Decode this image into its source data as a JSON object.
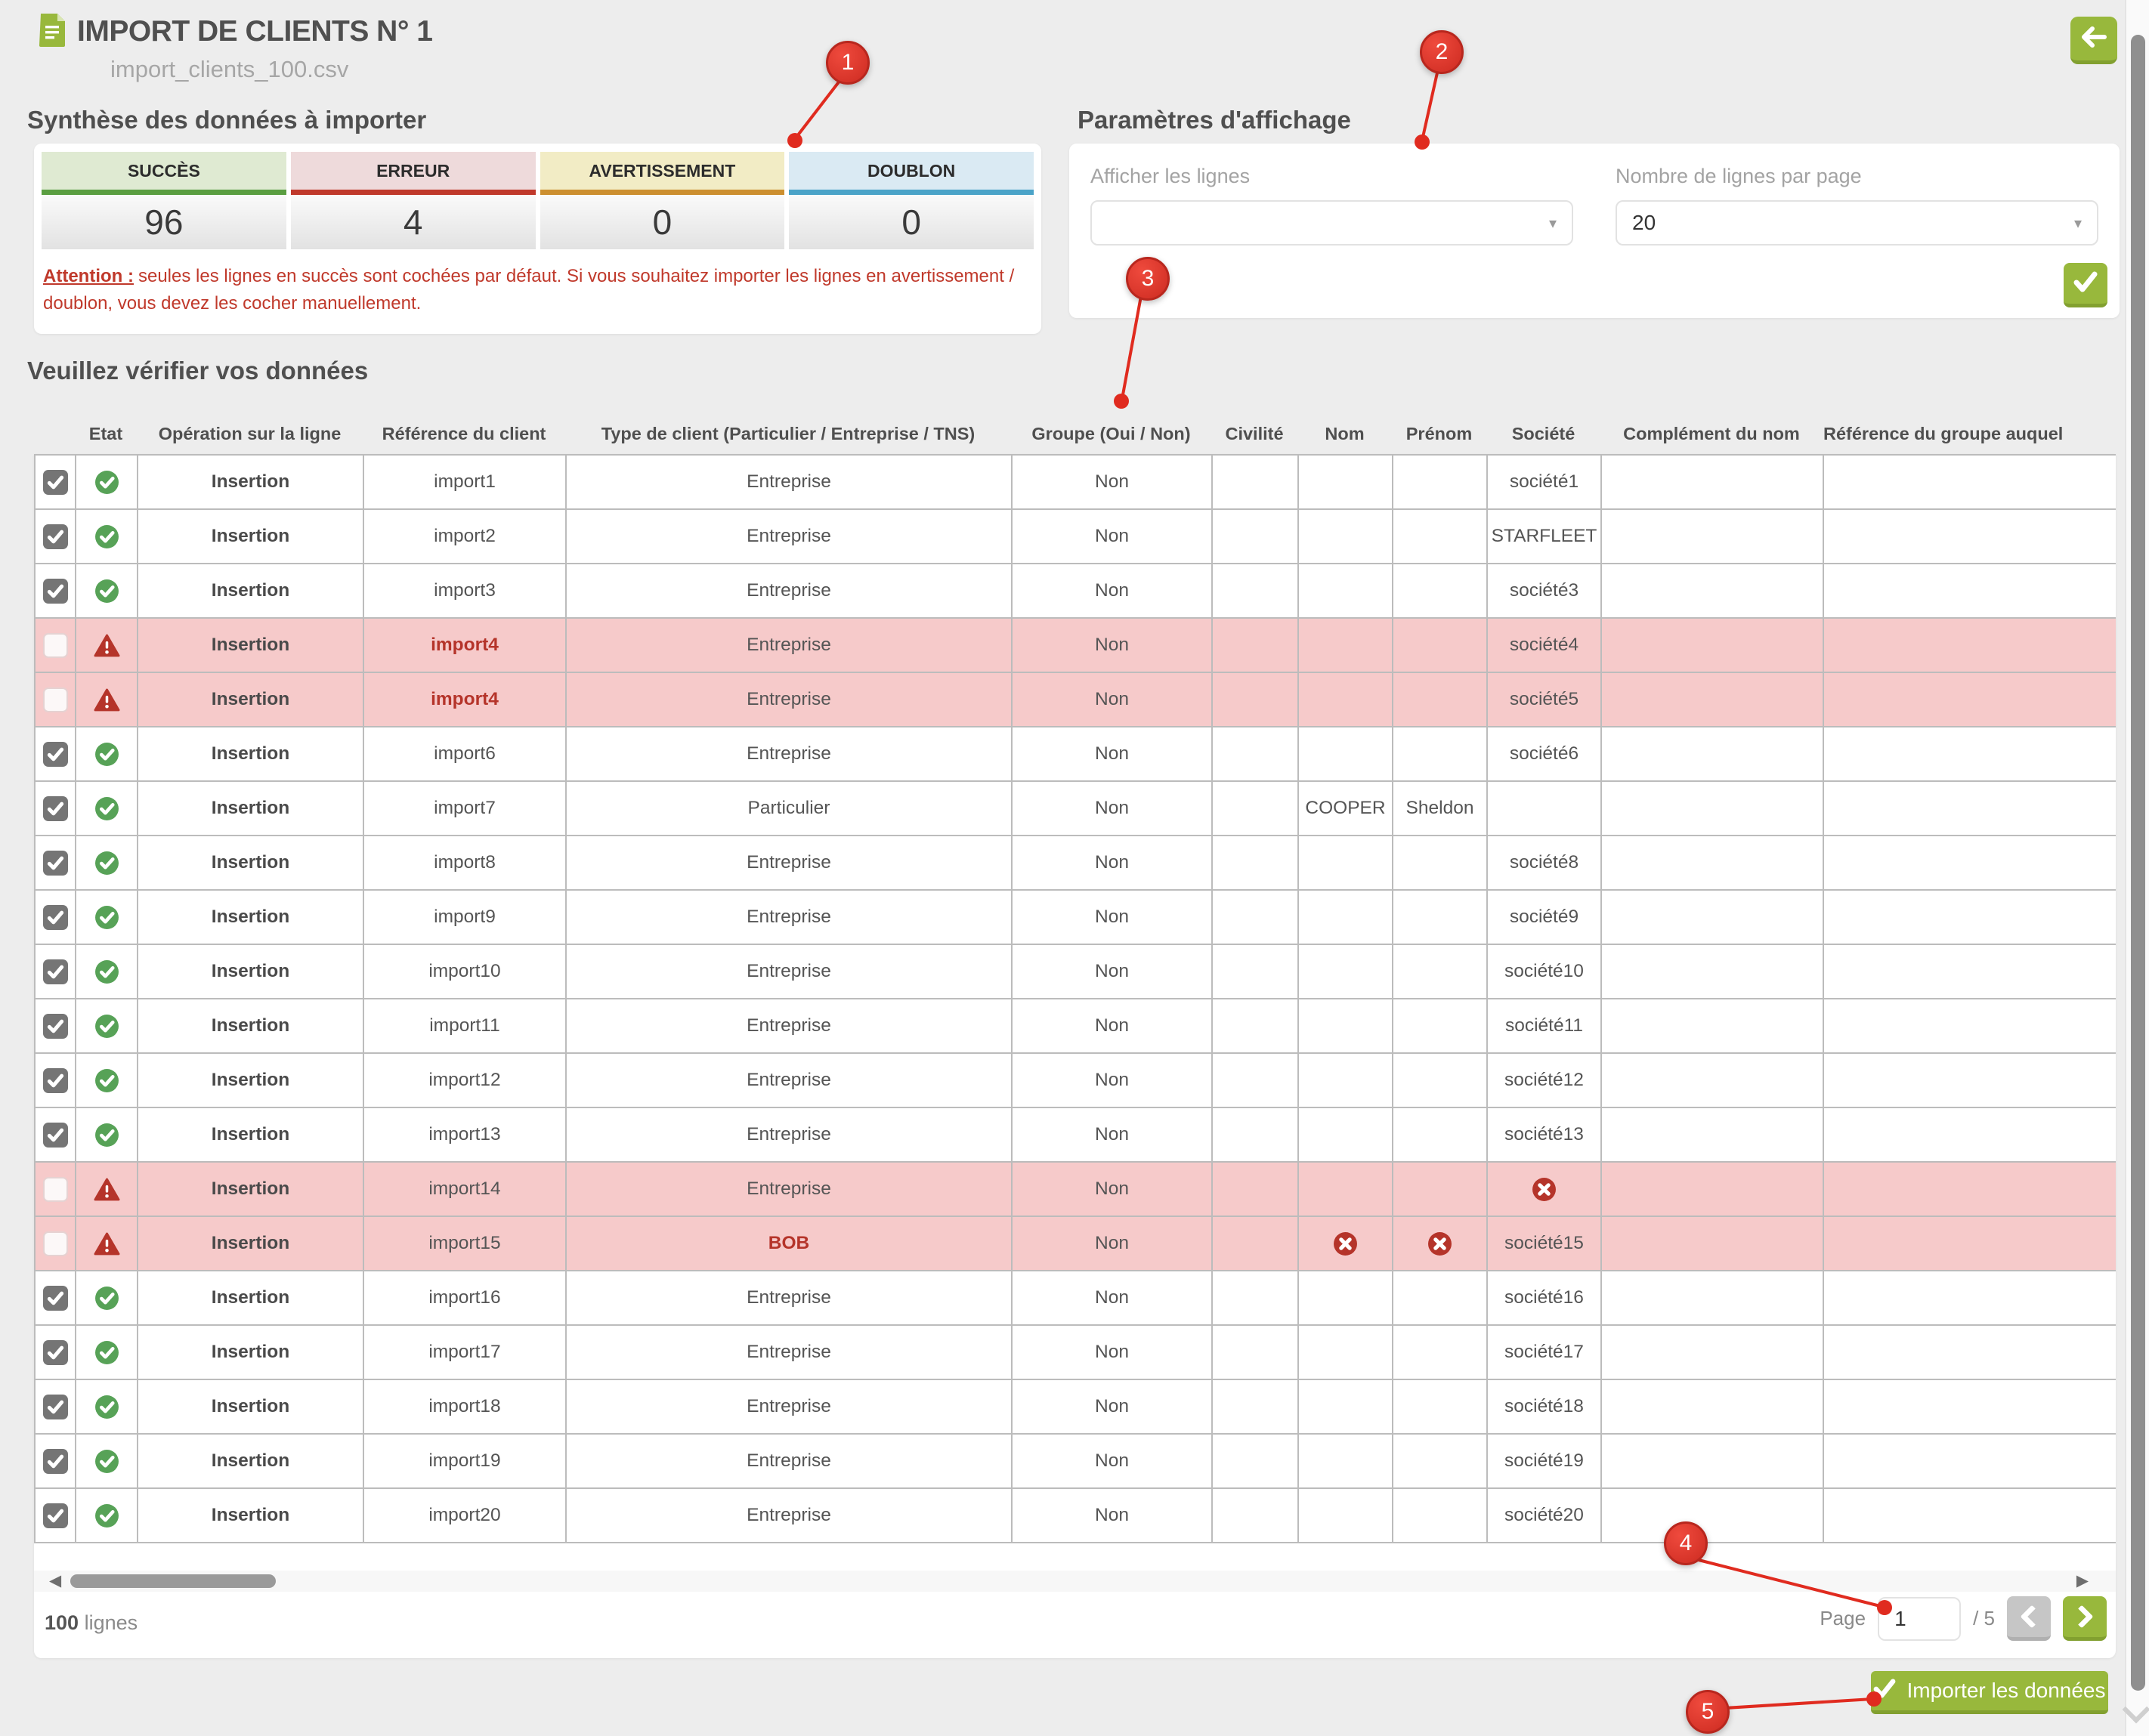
{
  "header": {
    "title": "IMPORT DE CLIENTS N° 1",
    "filename": "import_clients_100.csv"
  },
  "summary": {
    "heading": "Synthèse des données à importer",
    "boxes": [
      {
        "label": "SUCCÈS",
        "value": "96",
        "header_bg": "#dfead2",
        "bar": "#5a9e41"
      },
      {
        "label": "ERREUR",
        "value": "4",
        "header_bg": "#eedadb",
        "bar": "#c0392b"
      },
      {
        "label": "AVERTISSEMENT",
        "value": "0",
        "header_bg": "#f2ecc5",
        "bar": "#cc8f2f"
      },
      {
        "label": "DOUBLON",
        "value": "0",
        "header_bg": "#daeaf3",
        "bar": "#4aa3c8"
      }
    ],
    "warning_label": "Attention :",
    "warning_text": "seules les lignes en succès sont cochées par défaut. Si vous souhaitez importer les lignes en avertissement / doublon, vous devez les cocher manuellement."
  },
  "display_params": {
    "heading": "Paramètres d'affichage",
    "fields": [
      {
        "label": "Afficher les lignes",
        "value": ""
      },
      {
        "label": "Nombre de lignes par page",
        "value": "20"
      }
    ]
  },
  "table": {
    "heading": "Veuillez vérifier vos données",
    "columns": [
      "",
      "Etat",
      "Opération sur la ligne",
      "Référence du client",
      "Type de client (Particulier / Entreprise / TNS)",
      "Groupe (Oui / Non)",
      "Civilité",
      "Nom",
      "Prénom",
      "Société",
      "Complément du nom",
      "Référence du groupe auquel"
    ],
    "rows": [
      {
        "checked": true,
        "status": "success",
        "operation": "Insertion",
        "reference": "import1",
        "type": "Entreprise",
        "groupe": "Non",
        "societe": "société1"
      },
      {
        "checked": true,
        "status": "success",
        "operation": "Insertion",
        "reference": "import2",
        "type": "Entreprise",
        "groupe": "Non",
        "societe": "STARFLEET"
      },
      {
        "checked": true,
        "status": "success",
        "operation": "Insertion",
        "reference": "import3",
        "type": "Entreprise",
        "groupe": "Non",
        "societe": "société3"
      },
      {
        "checked": false,
        "status": "error",
        "operation": "Insertion",
        "reference": "import4",
        "type": "Entreprise",
        "groupe": "Non",
        "societe": "société4",
        "red": [
          "reference"
        ]
      },
      {
        "checked": false,
        "status": "error",
        "operation": "Insertion",
        "reference": "import4",
        "type": "Entreprise",
        "groupe": "Non",
        "societe": "société5",
        "red": [
          "reference"
        ]
      },
      {
        "checked": true,
        "status": "success",
        "operation": "Insertion",
        "reference": "import6",
        "type": "Entreprise",
        "groupe": "Non",
        "societe": "société6"
      },
      {
        "checked": true,
        "status": "success",
        "operation": "Insertion",
        "reference": "import7",
        "type": "Particulier",
        "groupe": "Non",
        "nom": "COOPER",
        "prenom": "Sheldon"
      },
      {
        "checked": true,
        "status": "success",
        "operation": "Insertion",
        "reference": "import8",
        "type": "Entreprise",
        "groupe": "Non",
        "societe": "société8"
      },
      {
        "checked": true,
        "status": "success",
        "operation": "Insertion",
        "reference": "import9",
        "type": "Entreprise",
        "groupe": "Non",
        "societe": "société9"
      },
      {
        "checked": true,
        "status": "success",
        "operation": "Insertion",
        "reference": "import10",
        "type": "Entreprise",
        "groupe": "Non",
        "societe": "société10"
      },
      {
        "checked": true,
        "status": "success",
        "operation": "Insertion",
        "reference": "import11",
        "type": "Entreprise",
        "groupe": "Non",
        "societe": "société11"
      },
      {
        "checked": true,
        "status": "success",
        "operation": "Insertion",
        "reference": "import12",
        "type": "Entreprise",
        "groupe": "Non",
        "societe": "société12"
      },
      {
        "checked": true,
        "status": "success",
        "operation": "Insertion",
        "reference": "import13",
        "type": "Entreprise",
        "groupe": "Non",
        "societe": "société13"
      },
      {
        "checked": false,
        "status": "error",
        "operation": "Insertion",
        "reference": "import14",
        "type": "Entreprise",
        "groupe": "Non",
        "icons": [
          "societe"
        ]
      },
      {
        "checked": false,
        "status": "error",
        "operation": "Insertion",
        "reference": "import15",
        "type": "BOB",
        "groupe": "Non",
        "societe": "société15",
        "red": [
          "type"
        ],
        "icons": [
          "nom",
          "prenom"
        ]
      },
      {
        "checked": true,
        "status": "success",
        "operation": "Insertion",
        "reference": "import16",
        "type": "Entreprise",
        "groupe": "Non",
        "societe": "société16"
      },
      {
        "checked": true,
        "status": "success",
        "operation": "Insertion",
        "reference": "import17",
        "type": "Entreprise",
        "groupe": "Non",
        "societe": "société17"
      },
      {
        "checked": true,
        "status": "success",
        "operation": "Insertion",
        "reference": "import18",
        "type": "Entreprise",
        "groupe": "Non",
        "societe": "société18"
      },
      {
        "checked": true,
        "status": "success",
        "operation": "Insertion",
        "reference": "import19",
        "type": "Entreprise",
        "groupe": "Non",
        "societe": "société19"
      },
      {
        "checked": true,
        "status": "success",
        "operation": "Insertion",
        "reference": "import20",
        "type": "Entreprise",
        "groupe": "Non",
        "societe": "société20"
      }
    ]
  },
  "footer": {
    "row_count": "100",
    "row_count_suffix": "lignes",
    "page_label": "Page",
    "page_value": "1",
    "page_total_label": "/ 5"
  },
  "actions": {
    "import_label": "Importer les données"
  },
  "annotations": [
    {
      "label": "1"
    },
    {
      "label": "2"
    },
    {
      "label": "3"
    },
    {
      "label": "4"
    },
    {
      "label": "5"
    }
  ],
  "icons": {
    "title": "file-icon",
    "back": "back-arrow-icon",
    "status_ok": "check-circle-icon",
    "status_error": "warning-triangle-icon",
    "missing_value": "cross-circle-icon",
    "apply": "check-icon"
  },
  "colors": {
    "accent_green": "#98b83c",
    "accent_green_dark": "#82a030",
    "error_red": "#c0392b",
    "icon_red": "#b5342a",
    "error_row_pink": "#f6caca",
    "success_green": "#57a257",
    "annotation_red": "#e02b1f"
  }
}
